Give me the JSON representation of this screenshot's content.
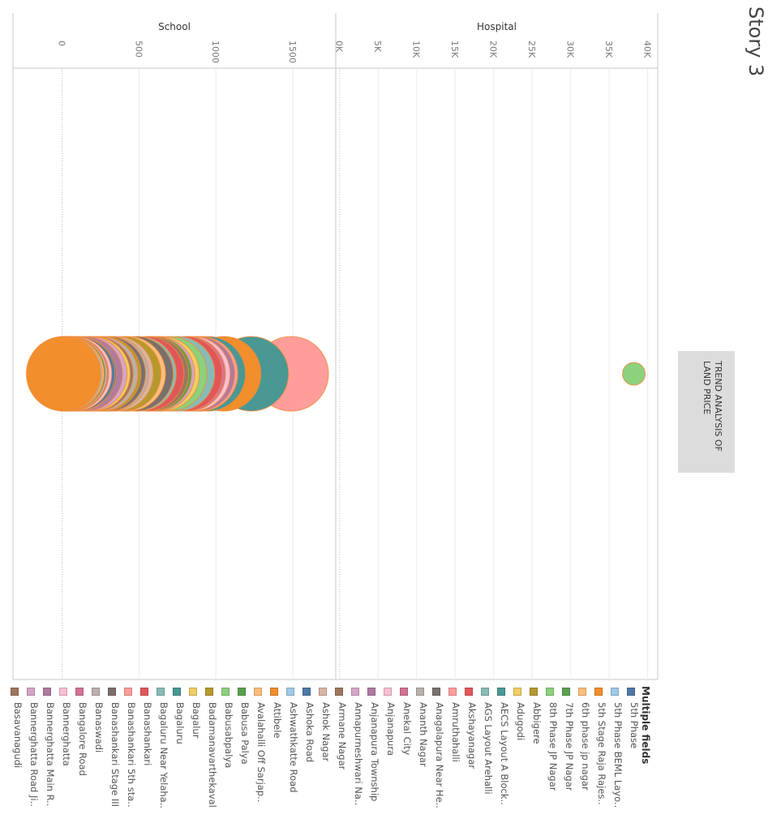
{
  "story": {
    "title": "Story 3",
    "button_label": "TREND ANALYSIS OF LAND PRICE"
  },
  "chart_data": {
    "type": "scatter",
    "panels": [
      {
        "title": "School",
        "ticks": [
          0,
          500,
          1000,
          1500
        ],
        "tick_labels": [
          "0",
          "500",
          "1000",
          "1500"
        ],
        "xlim": [
          -320,
          1780
        ]
      },
      {
        "title": "Hospital",
        "ticks": [
          0,
          5000,
          10000,
          15000,
          20000,
          25000,
          30000,
          35000,
          40000
        ],
        "tick_labels": [
          "0K",
          "5K",
          "10K",
          "15K",
          "20K",
          "25K",
          "30K",
          "35K",
          "40K"
        ],
        "xlim": [
          -500,
          41300
        ]
      }
    ],
    "series": [
      {
        "name": "5th Phase",
        "color": "#4e79a7",
        "school": 100,
        "hospital": null
      },
      {
        "name": "5th Phase BEML Layo..",
        "color": "#a0cbe8",
        "school": 20,
        "hospital": null
      },
      {
        "name": "5th Stage Raja Rajes..",
        "color": "#f28e2b",
        "school": 10,
        "hospital": null
      },
      {
        "name": "6th phase jp nagar",
        "color": "#ffbe7d",
        "school": 30,
        "hospital": null
      },
      {
        "name": "7th Phase JP Nagar",
        "color": "#59a14f",
        "school": 40,
        "hospital": null
      },
      {
        "name": "8th Phase JP Nagar",
        "color": "#8cd17d",
        "school": null,
        "hospital": 38200
      },
      {
        "name": "Abbigere",
        "color": "#b6992d",
        "school": 270,
        "hospital": null
      },
      {
        "name": "Adugodi",
        "color": "#f1ce63",
        "school": 200,
        "hospital": null
      },
      {
        "name": "AECS Layout A Block..",
        "color": "#499894",
        "school": 1230,
        "hospital": null
      },
      {
        "name": "AGS Layout Arehalli",
        "color": "#86bcb6",
        "school": 500,
        "hospital": null
      },
      {
        "name": "Akshayanagar",
        "color": "#e15759",
        "school": 800,
        "hospital": null
      },
      {
        "name": "Amruthahalli",
        "color": "#ff9d9a",
        "school": 1490,
        "hospital": null
      },
      {
        "name": "Anagalapura Near He..",
        "color": "#79706e",
        "school": 300,
        "hospital": null
      },
      {
        "name": "Ananth Nagar",
        "color": "#bab0ac",
        "school": 250,
        "hospital": null
      },
      {
        "name": "Anekal City",
        "color": "#d37295",
        "school": 60,
        "hospital": null
      },
      {
        "name": "Anjanapura",
        "color": "#fabfd2",
        "school": 80,
        "hospital": null
      },
      {
        "name": "Anjanapura Township",
        "color": "#b07aa1",
        "school": 150,
        "hospital": null
      },
      {
        "name": "Annapurneshwari Na..",
        "color": "#d4a6c8",
        "school": 180,
        "hospital": null
      },
      {
        "name": "Armane Nagar",
        "color": "#9d7660",
        "school": 220,
        "hospital": null
      },
      {
        "name": "Ashok Nagar",
        "color": "#d7b5a6",
        "school": 350,
        "hospital": null
      },
      {
        "name": "Ashoka Road",
        "color": "#4e79a7",
        "school": 110,
        "hospital": null
      },
      {
        "name": "Ashwathkatte Road",
        "color": "#a0cbe8",
        "school": 50,
        "hospital": null
      },
      {
        "name": "Attibele",
        "color": "#f28e2b",
        "school": 1050,
        "hospital": null
      },
      {
        "name": "Avalahalli Off Sarjap..",
        "color": "#ffbe7d",
        "school": 430,
        "hospital": null
      },
      {
        "name": "Babusa Palya",
        "color": "#59a14f",
        "school": 600,
        "hospital": null
      },
      {
        "name": "Babusabpalya",
        "color": "#8cd17d",
        "school": 700,
        "hospital": null
      },
      {
        "name": "Badamanavarthekaval",
        "color": "#b6992d",
        "school": 400,
        "hospital": null
      },
      {
        "name": "Bagalur",
        "color": "#f1ce63",
        "school": 650,
        "hospital": null
      },
      {
        "name": "Bagaluru",
        "color": "#499894",
        "school": 950,
        "hospital": null
      },
      {
        "name": "Bagaluru Near Yelaha..",
        "color": "#86bcb6",
        "school": 750,
        "hospital": null
      },
      {
        "name": "Banashankari",
        "color": "#e15759",
        "school": 550,
        "hospital": null
      },
      {
        "name": "Banashankari 5th sta..",
        "color": "#ff9d9a",
        "school": 900,
        "hospital": null
      },
      {
        "name": "Banashankari Stage III",
        "color": "#79706e",
        "school": 480,
        "hospital": null
      },
      {
        "name": "Banaswadi",
        "color": "#bab0ac",
        "school": 320,
        "hospital": null
      },
      {
        "name": "Bangalore Road",
        "color": "#d37295",
        "school": 820,
        "hospital": null
      },
      {
        "name": "Bannerghatta",
        "color": "#fabfd2",
        "school": 850,
        "hospital": null
      },
      {
        "name": "Bannerghatta Main R..",
        "color": "#b07aa1",
        "school": 880,
        "hospital": null
      },
      {
        "name": "Bannerghatta Road Ji..",
        "color": "#d4a6c8",
        "school": 620,
        "hospital": null
      },
      {
        "name": "Basavanagudi",
        "color": "#9d7660",
        "school": 580,
        "hospital": null
      }
    ]
  },
  "legend": {
    "title": "Multiple fields"
  }
}
